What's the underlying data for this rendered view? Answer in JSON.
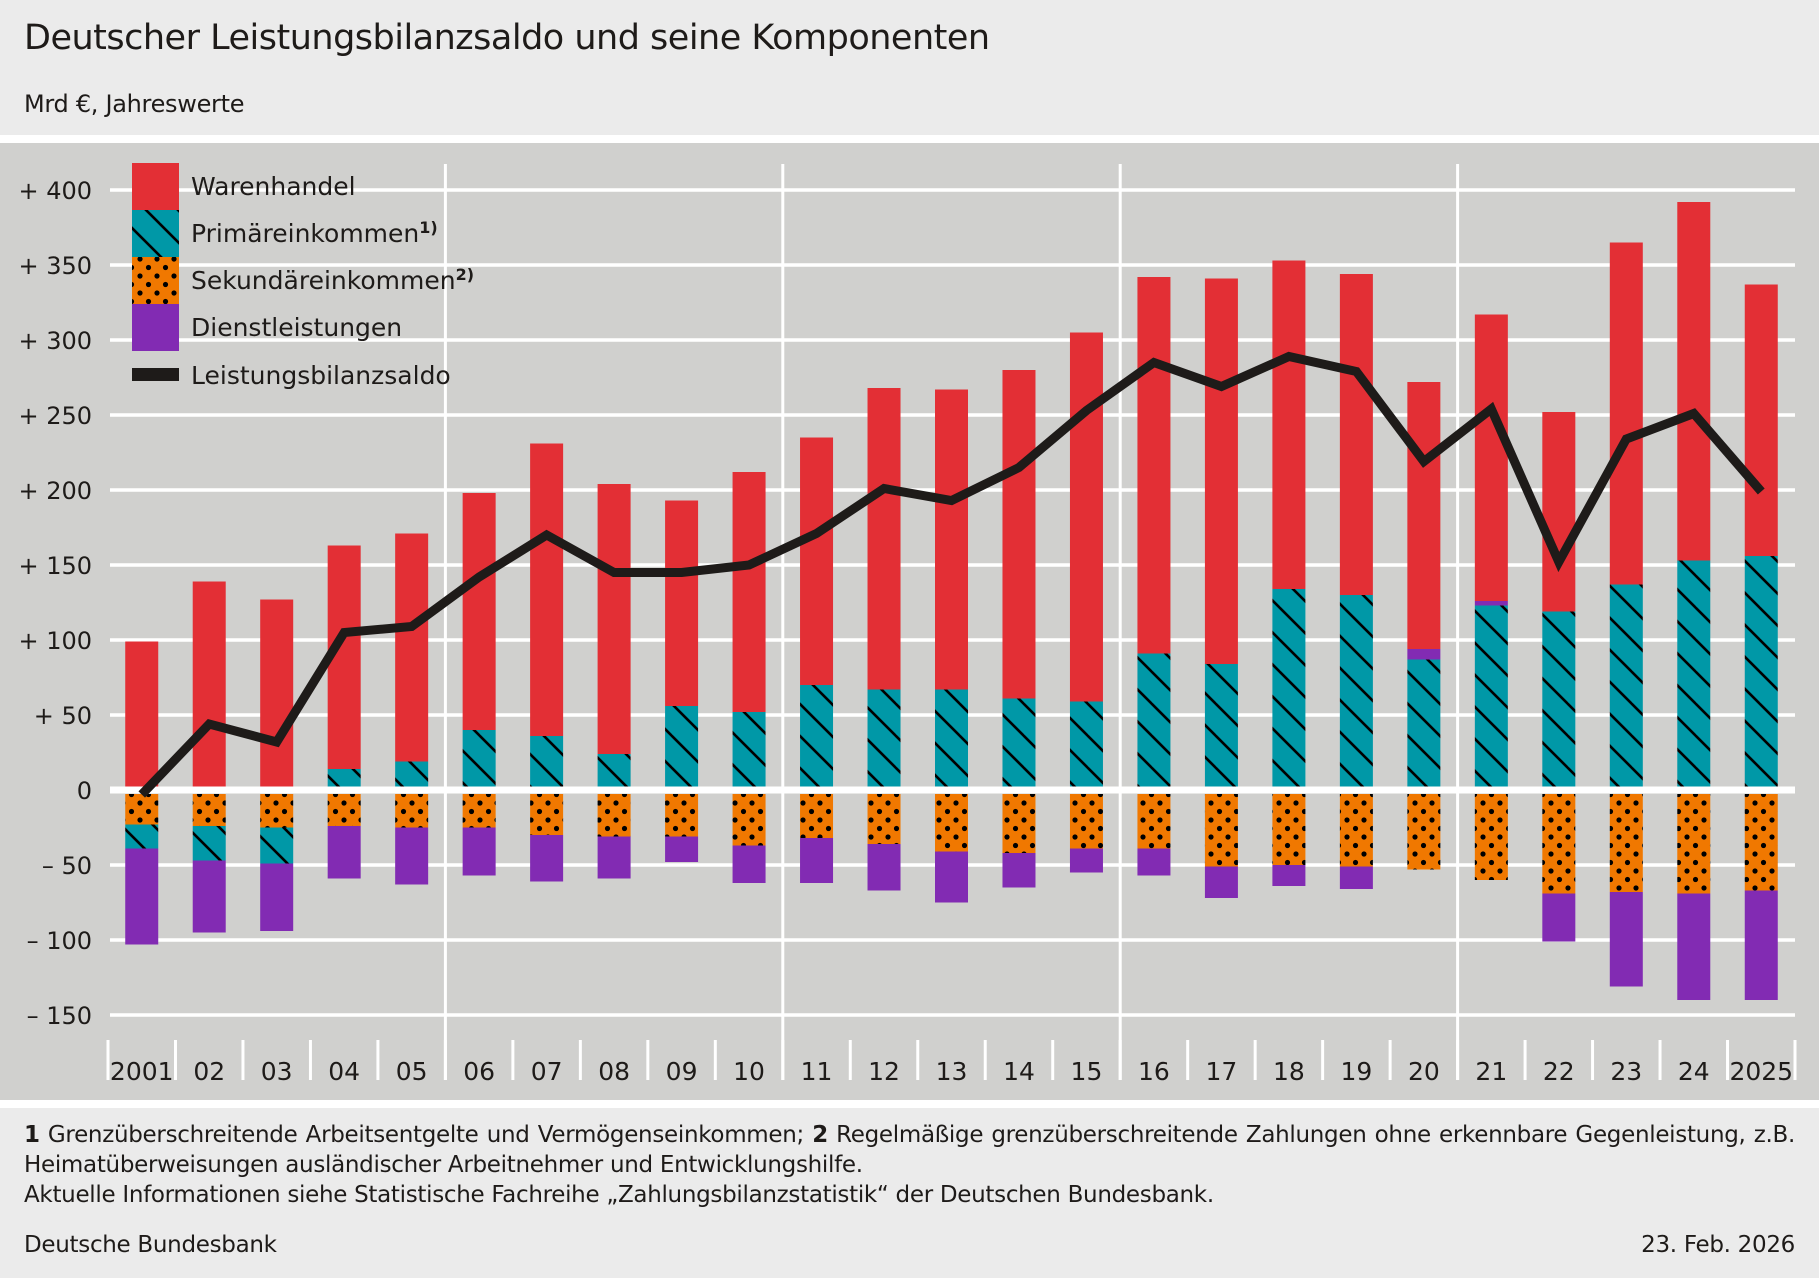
{
  "header": {
    "title": "Deutscher Leistungsbilanzsaldo und seine Komponenten",
    "subtitle": "Mrd €, Jahreswerte"
  },
  "footer": {
    "fn1_num": "1",
    "fn1_text": " Grenzüberschreitende Arbeitsentgelte und Vermögenseinkommen; ",
    "fn2_num": "2",
    "fn2_text": " Regelmäßige grenzüberschreitende Zahlungen ohne erkennbare Gegenleistung, z.B. Heimatüberweisungen ausländischer Arbeitnehmer und Entwicklungshilfe.",
    "info": "Aktuelle Informationen siehe Statistische Fachreihe „Zahlungsbilanzstatistik“ der Deutschen Bundesbank.",
    "source": "Deutsche Bundesbank",
    "date": "23. Feb. 2026"
  },
  "chart_data": {
    "type": "bar",
    "stacked": true,
    "title": "Deutscher Leistungsbilanzsaldo und seine Komponenten",
    "subtitle": "Mrd €, Jahreswerte",
    "xlabel": "",
    "ylabel": "Mrd €",
    "ylim": [
      -150,
      400
    ],
    "yticks": [
      400,
      350,
      300,
      250,
      200,
      150,
      100,
      50,
      0,
      -50,
      -100,
      -150
    ],
    "ytick_labels": [
      "+ 400",
      "+ 350",
      "+ 300",
      "+ 250",
      "+ 200",
      "+ 150",
      "+ 100",
      "+   50",
      "0",
      "–   50",
      "– 100",
      "– 150"
    ],
    "grid": true,
    "legend_position": "top-left",
    "categories": [
      "2001",
      "02",
      "03",
      "04",
      "05",
      "06",
      "07",
      "08",
      "09",
      "10",
      "11",
      "12",
      "13",
      "14",
      "15",
      "16",
      "17",
      "18",
      "19",
      "20",
      "21",
      "22",
      "23",
      "24",
      "2025"
    ],
    "series": [
      {
        "name": "Warenhandel",
        "color": "#e32f35",
        "pattern": "solid",
        "values": [
          99,
          139,
          127,
          149,
          152,
          158,
          195,
          180,
          137,
          160,
          165,
          201,
          200,
          219,
          246,
          251,
          257,
          219,
          214,
          178,
          191,
          133,
          228,
          239,
          181
        ]
      },
      {
        "name": "Primäreinkommen",
        "footnote": "1)",
        "color": "#0098a7",
        "pattern": "diagonal-hatch",
        "values": [
          -16,
          -23,
          -24,
          14,
          19,
          40,
          36,
          24,
          56,
          52,
          70,
          67,
          67,
          61,
          59,
          91,
          84,
          134,
          130,
          87,
          123,
          119,
          137,
          153,
          156
        ]
      },
      {
        "name": "Sekundäreinkommen",
        "footnote": "2)",
        "color": "#f07800",
        "pattern": "dots",
        "values": [
          -23,
          -24,
          -25,
          -24,
          -25,
          -25,
          -30,
          -31,
          -31,
          -37,
          -32,
          -36,
          -41,
          -42,
          -39,
          -39,
          -51,
          -50,
          -51,
          -53,
          -60,
          -69,
          -68,
          -69,
          -67
        ]
      },
      {
        "name": "Dienstleistungen",
        "color": "#822bb3",
        "pattern": "solid",
        "values": [
          -64,
          -48,
          -45,
          -35,
          -38,
          -32,
          -31,
          -28,
          -17,
          -25,
          -30,
          -31,
          -34,
          -23,
          -16,
          -18,
          -21,
          -14,
          -15,
          7,
          3,
          -32,
          -63,
          -71,
          -73
        ]
      },
      {
        "name": "Leistungsbilanzsaldo",
        "color": "#1e1b19",
        "type": "line",
        "values": [
          -3,
          44,
          32,
          105,
          109,
          142,
          170,
          145,
          145,
          150,
          171,
          201,
          193,
          215,
          253,
          285,
          269,
          289,
          279,
          219,
          254,
          152,
          234,
          251,
          199
        ]
      }
    ]
  }
}
